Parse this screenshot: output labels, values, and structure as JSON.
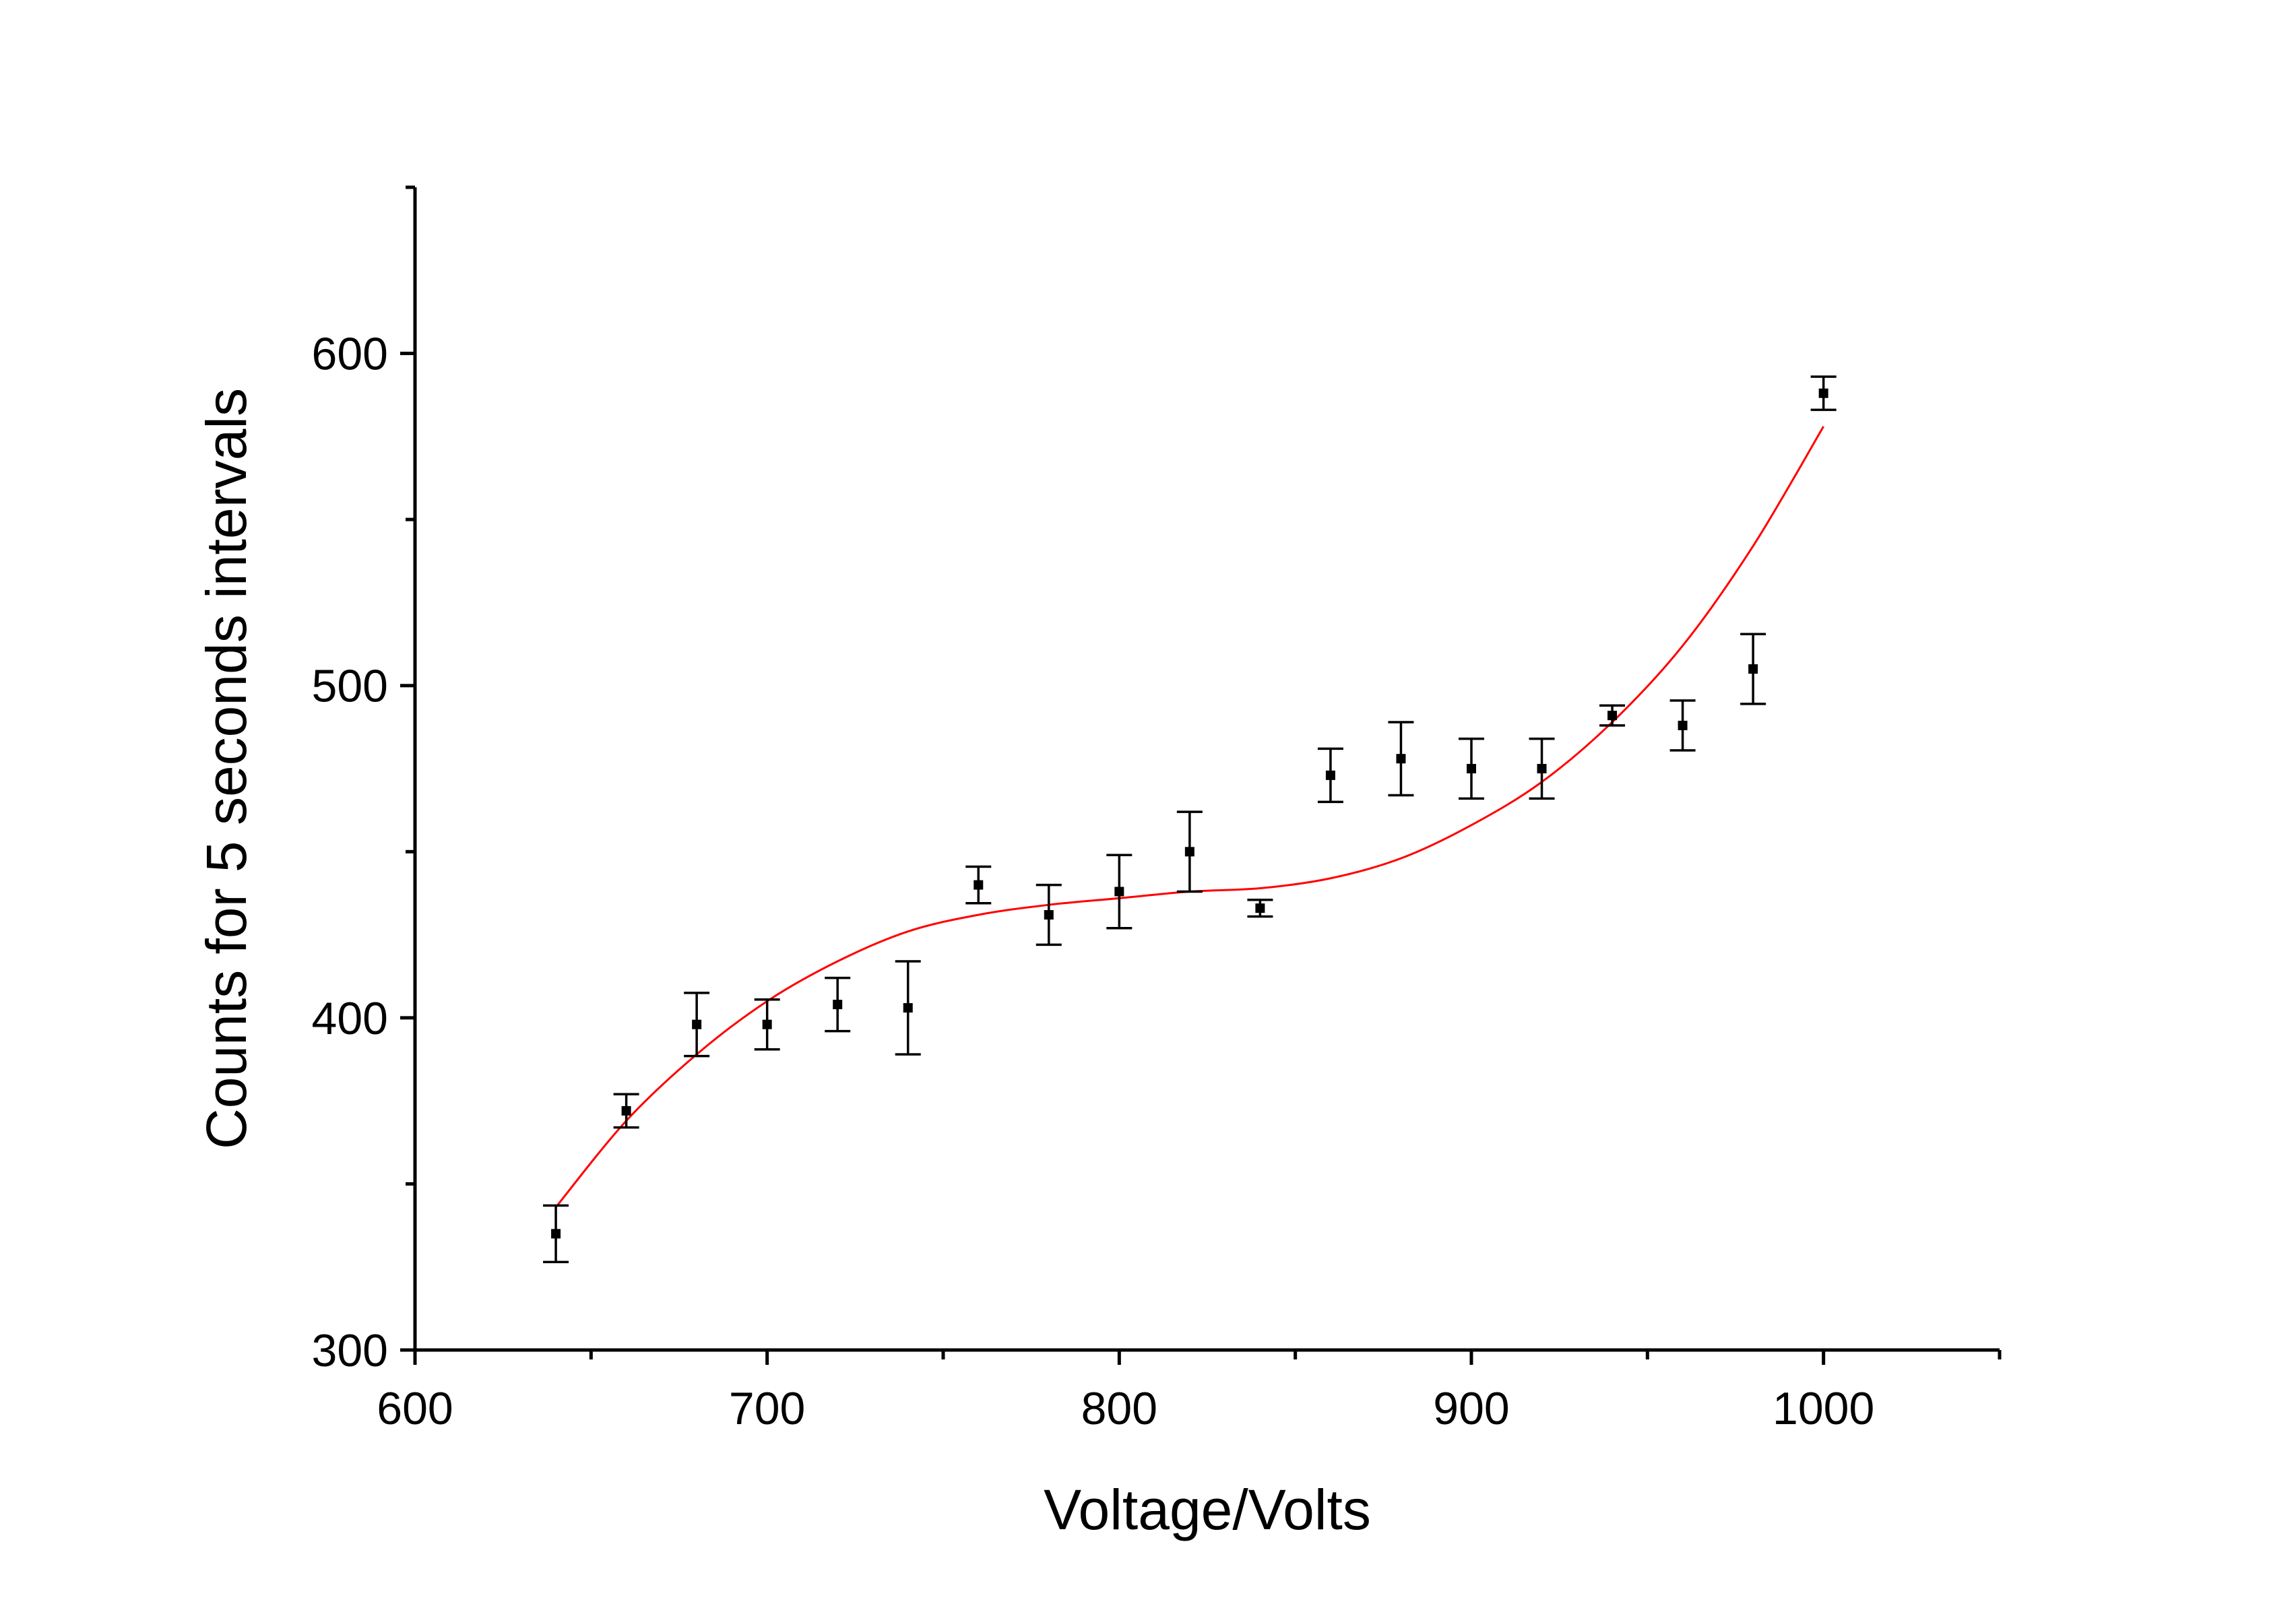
{
  "chart_data": {
    "type": "scatter",
    "title": "",
    "xlabel": "Voltage/Volts",
    "ylabel": "Counts for 5 seconds intervals",
    "xlim": [
      600,
      1050
    ],
    "ylim": [
      300,
      650
    ],
    "x_ticks": [
      600,
      700,
      800,
      900,
      1000
    ],
    "y_ticks": [
      300,
      400,
      500,
      600
    ],
    "grid": false,
    "legend": "none",
    "series": [
      {
        "style": "points-with-error-bars",
        "color": "#000000",
        "points": [
          {
            "x": 640,
            "y": 335,
            "err": 8.5
          },
          {
            "x": 660,
            "y": 372,
            "err": 5
          },
          {
            "x": 680,
            "y": 398,
            "err": 9.5
          },
          {
            "x": 700,
            "y": 398,
            "err": 7.5
          },
          {
            "x": 720,
            "y": 404,
            "err": 8
          },
          {
            "x": 740,
            "y": 403,
            "err": 14
          },
          {
            "x": 760,
            "y": 440,
            "err": 5.5
          },
          {
            "x": 780,
            "y": 431,
            "err": 9
          },
          {
            "x": 800,
            "y": 438,
            "err": 11
          },
          {
            "x": 820,
            "y": 450,
            "err": 12
          },
          {
            "x": 840,
            "y": 433,
            "err": 2.5
          },
          {
            "x": 860,
            "y": 473,
            "err": 8
          },
          {
            "x": 880,
            "y": 478,
            "err": 11
          },
          {
            "x": 900,
            "y": 475,
            "err": 9
          },
          {
            "x": 920,
            "y": 475,
            "err": 9
          },
          {
            "x": 940,
            "y": 491,
            "err": 3
          },
          {
            "x": 960,
            "y": 488,
            "err": 7.5
          },
          {
            "x": 980,
            "y": 505,
            "err": 10.5
          },
          {
            "x": 1000,
            "y": 588,
            "err": 5
          }
        ]
      },
      {
        "style": "fit-curve",
        "color": "#ff0000",
        "x": [
          640,
          660,
          680,
          700,
          720,
          740,
          760,
          780,
          800,
          820,
          840,
          860,
          880,
          900,
          920,
          940,
          960,
          980,
          1000
        ],
        "y": [
          343,
          369,
          389,
          405,
          417,
          426,
          431,
          434,
          436,
          438,
          439,
          442,
          448,
          458,
          471,
          489,
          512,
          542,
          578
        ]
      }
    ]
  }
}
